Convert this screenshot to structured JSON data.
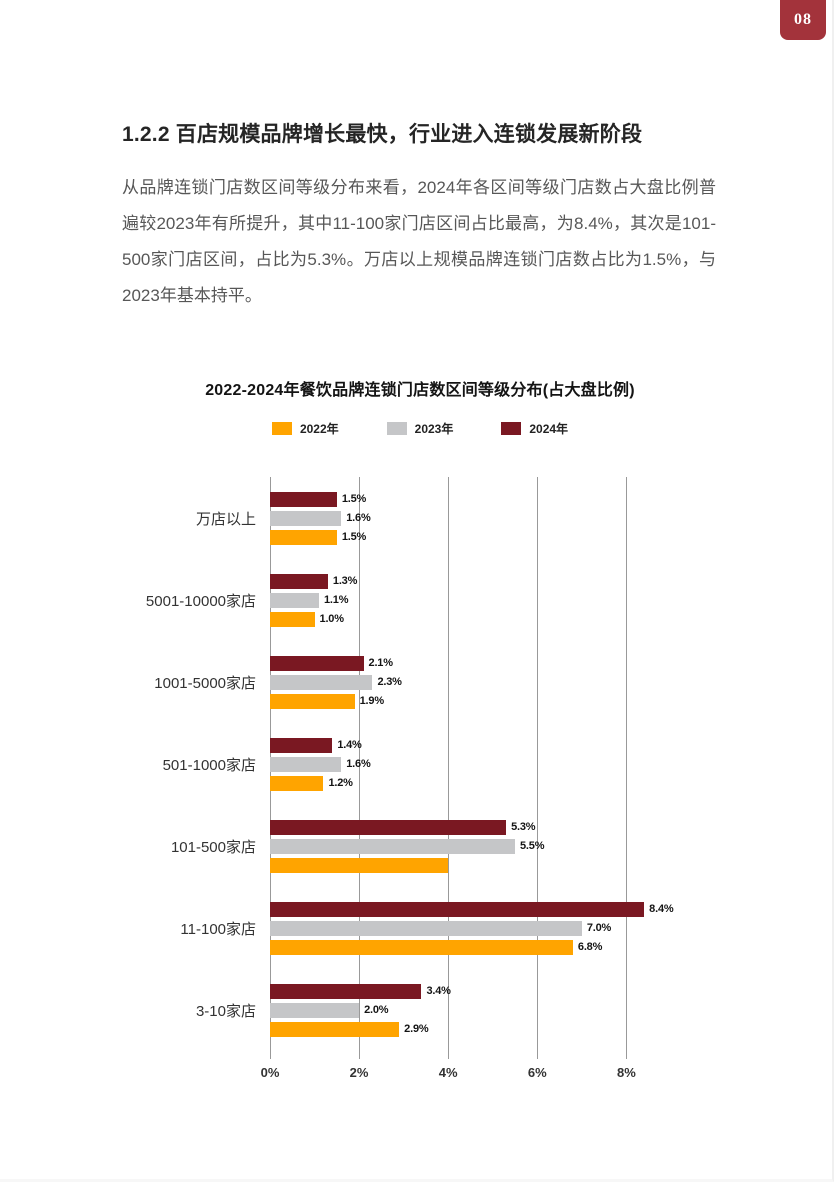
{
  "page": {
    "badge": "08",
    "badge_color": "#a3333b",
    "background": "#ffffff"
  },
  "section": {
    "heading": "1.2.2 百店规模品牌增长最快，行业进入连锁发展新阶段",
    "paragraph": "从品牌连锁门店数区间等级分布来看，2024年各区间等级门店数占大盘比例普遍较2023年有所提升，其中11-100家门店区间占比最高，为8.4%，其次是101-500家门店区间，占比为5.3%。万店以上规模品牌连锁门店数占比为1.5%，与2023年基本持平。"
  },
  "chart_data": {
    "type": "bar",
    "orientation": "horizontal",
    "title": "2022-2024年餐饮品牌连锁门店数区间等级分布(占大盘比例)",
    "categories": [
      "万店以上",
      "5001-10000家店",
      "1001-5000家店",
      "501-1000家店",
      "101-500家店",
      "11-100家店",
      "3-10家店"
    ],
    "series": [
      {
        "name": "2024年",
        "color": "#7a1822",
        "values": [
          1.5,
          1.3,
          2.1,
          1.4,
          5.3,
          8.4,
          3.4
        ],
        "labels": [
          "1.5%",
          "1.3%",
          "2.1%",
          "1.4%",
          "5.3%",
          "8.4%",
          "3.4%"
        ]
      },
      {
        "name": "2023年",
        "color": "#c5c6c8",
        "values": [
          1.6,
          1.1,
          2.3,
          1.6,
          5.5,
          7.0,
          2.0
        ],
        "labels": [
          "1.6%",
          "1.1%",
          "2.3%",
          "1.6%",
          "5.5%",
          "7.0%",
          "2.0%"
        ]
      },
      {
        "name": "2022年",
        "color": "#ffa400",
        "values": [
          1.5,
          1.0,
          1.9,
          1.2,
          4.0,
          6.8,
          2.9
        ],
        "labels": [
          "1.5%",
          "1.0%",
          "1.9%",
          "1.2%",
          "",
          "6.8%",
          "2.9%"
        ]
      }
    ],
    "legend": [
      {
        "label": "2022年",
        "color": "#ffa400"
      },
      {
        "label": "2023年",
        "color": "#c5c6c8"
      },
      {
        "label": "2024年",
        "color": "#7a1822"
      }
    ],
    "xticks": [
      "0%",
      "2%",
      "4%",
      "6%",
      "8%"
    ],
    "xtick_values": [
      0,
      2,
      4,
      6,
      8
    ],
    "xmax": 8.8,
    "grid": true,
    "legend_position": "top",
    "notes": "每组自上而下为2024年、2023年、2022年；101-500家店的2022年柱无数值标签"
  }
}
